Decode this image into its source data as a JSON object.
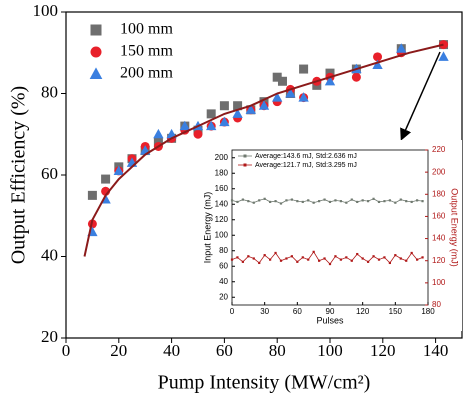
{
  "chart_data": [
    {
      "type": "scatter",
      "x_label": "Pump Intensity (MW/cm²)",
      "y_label": "Output Efficiency (%)",
      "xlim": [
        0,
        150
      ],
      "ylim": [
        20,
        100
      ],
      "xticks": [
        0,
        20,
        40,
        60,
        80,
        100,
        120,
        140
      ],
      "yticks": [
        20,
        40,
        60,
        80,
        100
      ],
      "legend": "upper left",
      "series": [
        {
          "name": "100 mm",
          "color": "#6e6e6e",
          "marker": "square",
          "x": [
            10,
            15,
            20,
            25,
            30,
            35,
            40,
            45,
            50,
            55,
            60,
            65,
            70,
            75,
            80,
            82,
            85,
            90,
            95,
            100,
            110,
            127,
            143
          ],
          "values": [
            55,
            59,
            62,
            64,
            66,
            68,
            69,
            72,
            71,
            75,
            77,
            77,
            76,
            78,
            84,
            83,
            80,
            86,
            82,
            85,
            86,
            91,
            92
          ]
        },
        {
          "name": "150 mm",
          "color": "#e8202a",
          "marker": "circle",
          "x": [
            10,
            15,
            20,
            25,
            30,
            35,
            40,
            45,
            50,
            55,
            60,
            65,
            70,
            75,
            80,
            85,
            90,
            95,
            100,
            110,
            118,
            127,
            143
          ],
          "values": [
            48,
            56,
            61,
            64,
            67,
            67,
            69,
            71,
            70,
            72,
            73,
            74,
            76,
            77,
            78,
            81,
            79,
            83,
            84,
            84,
            89,
            90,
            92
          ]
        },
        {
          "name": "200 mm",
          "color": "#3a7fe0",
          "marker": "triangle",
          "x": [
            10,
            15,
            20,
            25,
            30,
            35,
            40,
            45,
            50,
            55,
            60,
            65,
            70,
            75,
            80,
            85,
            90,
            100,
            110,
            118,
            127,
            143
          ],
          "values": [
            46,
            54,
            61,
            63,
            66,
            70,
            70,
            72,
            72,
            72,
            73,
            75,
            76,
            77,
            79,
            80,
            79,
            83,
            86,
            87,
            91,
            89
          ]
        },
        {
          "color": "#8b1a1a",
          "line": true,
          "x": [
            7,
            10,
            15,
            20,
            30,
            40,
            50,
            60,
            70,
            80,
            90,
            100,
            110,
            120,
            130,
            143
          ],
          "values": [
            40,
            49,
            55,
            59,
            65,
            69,
            72,
            75,
            77,
            80,
            82,
            84,
            86,
            88,
            90,
            92
          ]
        }
      ]
    },
    {
      "type": "line",
      "x_label": "Pulses",
      "y_label": "Input Energy (mJ)",
      "y2_label": "Output Energy (mJ)",
      "xlim": [
        0,
        180
      ],
      "ylim": [
        10,
        210
      ],
      "y2lim": [
        80,
        220
      ],
      "xticks": [
        0,
        30,
        60,
        90,
        120,
        150,
        180
      ],
      "yticks": [
        20,
        40,
        60,
        80,
        100,
        120,
        140,
        160,
        180,
        200
      ],
      "y2ticks": [
        80,
        100,
        120,
        140,
        160,
        180,
        200,
        220
      ],
      "legend": "upper left",
      "series": [
        {
          "name": "Average:143.6 mJ, Std:2.636 mJ",
          "color": "#707a70",
          "marker": "square",
          "line": true,
          "x": [
            0,
            5,
            10,
            15,
            20,
            25,
            30,
            35,
            40,
            45,
            50,
            55,
            60,
            65,
            70,
            75,
            80,
            85,
            90,
            95,
            100,
            105,
            110,
            115,
            120,
            125,
            130,
            135,
            140,
            145,
            150,
            155,
            160,
            165,
            170,
            175
          ],
          "values": [
            145,
            143,
            146,
            144,
            142,
            145,
            147,
            143,
            144,
            141,
            145,
            146,
            144,
            143,
            145,
            142,
            144,
            146,
            143,
            145,
            144,
            142,
            146,
            143,
            145,
            144,
            147,
            143,
            144,
            145,
            142,
            146,
            144,
            143,
            145,
            144
          ]
        },
        {
          "name": "Average:121.7 mJ, Std:3.295 mJ",
          "color": "#b01818",
          "marker": "square",
          "line": true,
          "axis": "y2",
          "x": [
            0,
            5,
            10,
            15,
            20,
            25,
            30,
            35,
            40,
            45,
            50,
            55,
            60,
            65,
            70,
            75,
            80,
            85,
            90,
            95,
            100,
            105,
            110,
            115,
            120,
            125,
            130,
            135,
            140,
            145,
            150,
            155,
            160,
            165,
            170,
            175
          ],
          "values": [
            121,
            123,
            119,
            124,
            122,
            118,
            125,
            121,
            127,
            120,
            122,
            124,
            119,
            123,
            121,
            128,
            120,
            122,
            117,
            124,
            121,
            123,
            120,
            126,
            122,
            119,
            124,
            121,
            123,
            118,
            125,
            122,
            120,
            127,
            121,
            123
          ]
        }
      ]
    }
  ]
}
